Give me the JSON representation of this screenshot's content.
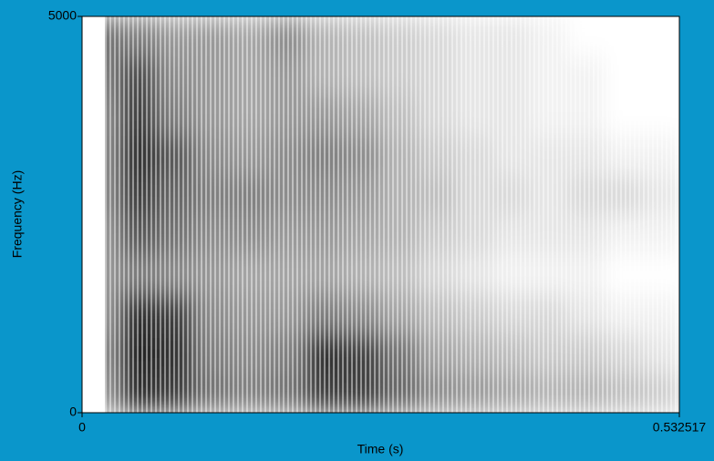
{
  "chart_data": {
    "type": "spectrogram",
    "xlabel": "Time (s)",
    "ylabel": "Frequency (Hz)",
    "xlim": [
      0,
      0.532517
    ],
    "xticks": [
      0,
      0.532517
    ],
    "ylim": [
      0,
      5000
    ],
    "yticks": [
      0,
      5000
    ],
    "background": "#0a96cb",
    "z": [
      [
        40,
        80,
        75,
        55,
        50,
        55,
        75,
        75,
        60,
        45,
        40,
        35,
        30,
        30,
        25,
        20
      ],
      [
        45,
        85,
        80,
        50,
        45,
        50,
        80,
        75,
        55,
        35,
        30,
        25,
        20,
        20,
        15,
        10
      ],
      [
        40,
        80,
        75,
        45,
        40,
        40,
        50,
        45,
        35,
        25,
        20,
        15,
        15,
        10,
        5,
        5
      ],
      [
        40,
        50,
        45,
        40,
        35,
        35,
        35,
        30,
        25,
        15,
        10,
        5,
        5,
        5,
        0,
        0
      ],
      [
        40,
        65,
        55,
        45,
        45,
        40,
        40,
        35,
        30,
        20,
        15,
        10,
        10,
        10,
        5,
        5
      ],
      [
        45,
        75,
        60,
        50,
        50,
        45,
        45,
        40,
        30,
        25,
        15,
        15,
        10,
        15,
        15,
        10
      ],
      [
        45,
        80,
        65,
        45,
        40,
        45,
        50,
        45,
        30,
        20,
        15,
        10,
        10,
        10,
        5,
        5
      ],
      [
        45,
        75,
        50,
        40,
        35,
        40,
        40,
        35,
        25,
        15,
        10,
        10,
        5,
        5,
        0,
        0
      ],
      [
        50,
        70,
        45,
        40,
        35,
        40,
        30,
        25,
        20,
        15,
        10,
        10,
        5,
        5,
        0,
        0
      ],
      [
        55,
        50,
        40,
        40,
        35,
        45,
        30,
        25,
        20,
        15,
        10,
        10,
        5,
        0,
        0,
        0
      ]
    ]
  }
}
